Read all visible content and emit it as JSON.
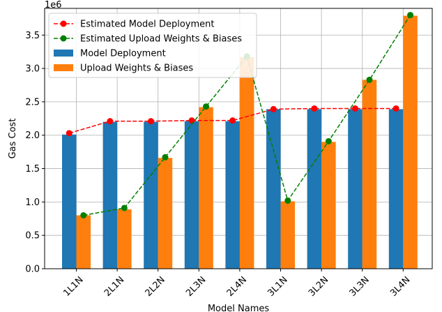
{
  "chart_data": {
    "type": "bar",
    "title": "",
    "xlabel": "Model Names",
    "ylabel": "Gas Cost",
    "y_offset_text": "1e6",
    "ylim": [
      0,
      3.9
    ],
    "y_ticks": [
      0.0,
      0.5,
      1.0,
      1.5,
      2.0,
      2.5,
      3.0,
      3.5
    ],
    "y_tick_labels": [
      "0.0",
      "0.5",
      "1.0",
      "1.5",
      "2.0",
      "2.5",
      "3.0",
      "3.5"
    ],
    "grid": true,
    "legend_position": "top-left",
    "categories": [
      "1L1N",
      "2L1N",
      "2L2N",
      "2L3N",
      "2L4N",
      "3L1N",
      "3L2N",
      "3L3N",
      "3L4N"
    ],
    "series": [
      {
        "name": "Estimated Model Deployment",
        "kind": "line",
        "style": "dashed",
        "marker": "circle",
        "color": "#ff0000",
        "values": [
          2.03,
          2.21,
          2.21,
          2.22,
          2.22,
          2.39,
          2.4,
          2.4,
          2.4
        ]
      },
      {
        "name": "Estimated Upload Weights & Biases",
        "kind": "line",
        "style": "dashed",
        "marker": "circle",
        "color": "#008000",
        "values": [
          0.8,
          0.91,
          1.67,
          2.43,
          3.18,
          1.02,
          1.91,
          2.83,
          3.8
        ]
      },
      {
        "name": "Model Deployment",
        "kind": "bar",
        "color": "#1f77b4",
        "values": [
          2.01,
          2.2,
          2.2,
          2.21,
          2.21,
          2.39,
          2.39,
          2.39,
          2.39
        ]
      },
      {
        "name": "Upload Weights & Biases",
        "kind": "bar",
        "color": "#ff7f0e",
        "values": [
          0.8,
          0.89,
          1.66,
          2.42,
          3.17,
          1.01,
          1.9,
          2.83,
          3.79
        ]
      }
    ]
  }
}
